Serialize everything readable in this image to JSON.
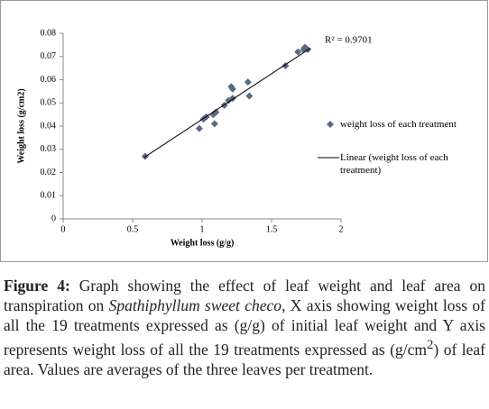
{
  "chart_data": {
    "type": "scatter",
    "series": [
      {
        "name": "weight loss of each treatment",
        "color": "#5a6a86",
        "x": [
          0.59,
          0.98,
          1.01,
          1.03,
          1.08,
          1.09,
          1.1,
          1.16,
          1.19,
          1.22,
          1.21,
          1.22,
          1.33,
          1.34,
          1.6,
          1.69,
          1.73,
          1.74,
          1.76
        ],
        "values": [
          0.027,
          0.039,
          0.043,
          0.044,
          0.045,
          0.041,
          0.046,
          0.049,
          0.051,
          0.052,
          0.057,
          0.056,
          0.059,
          0.053,
          0.066,
          0.072,
          0.073,
          0.074,
          0.073
        ]
      }
    ],
    "trendline": {
      "name": "Linear (weight loss of each treatment)",
      "color": "#000000",
      "x": [
        0.58,
        1.78
      ],
      "values": [
        0.0264,
        0.0736
      ]
    },
    "annotation": "R² = 0.9701",
    "x_label": "Weight loss (g/g)",
    "y_label": "Weight loss (g/cm2)",
    "xlim": [
      0,
      2
    ],
    "xticks": [
      0,
      0.5,
      1,
      1.5,
      2
    ],
    "ylim": [
      0,
      0.08
    ],
    "yticks": [
      0,
      0.01,
      0.02,
      0.03,
      0.04,
      0.05,
      0.06,
      0.07,
      0.08
    ],
    "legend": "right"
  },
  "caption": {
    "label": "Figure 4:",
    "parts": [
      "Graph showing the effect of leaf weight and leaf area on transpiration on ",
      "Spathiphyllum sweet checo",
      ", X axis showing weight loss of all the 19 treatments expressed as (g/g) of initial leaf weight and Y axis represents weight loss of all the 19 treatments expressed as (g/cm",
      "2",
      ") of leaf area. Values are averages of the three leaves per treatment."
    ]
  }
}
